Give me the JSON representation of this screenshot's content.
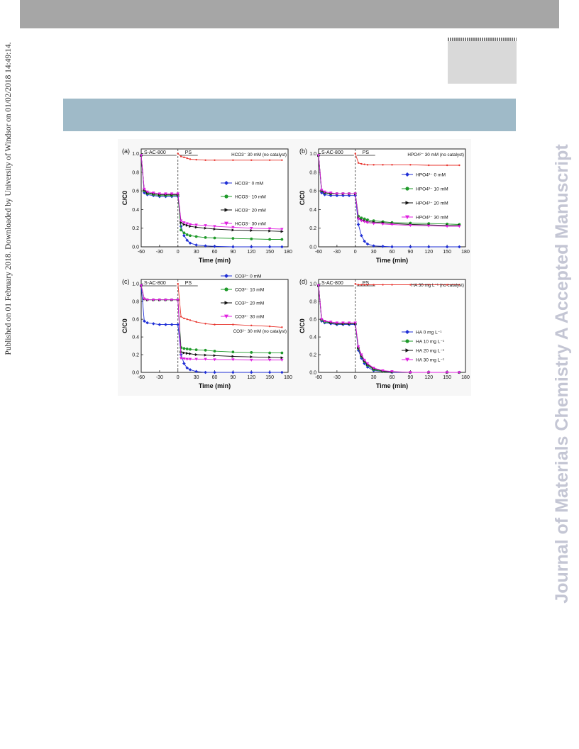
{
  "page": {
    "side_text": "Published on 01 February 2018. Downloaded by University of Windsor on 01/02/2018 14:49:14.",
    "watermark": "Journal of Materials Chemistry A Accepted Manuscript"
  },
  "colors": {
    "top_bar": "#a6a6a6",
    "title_band": "#9fbac8",
    "gray_box": "#d9d9d9",
    "watermark": "#c4c6d4",
    "nocat": "#e8352e",
    "blue": "#1f2fd6",
    "green": "#1f9a2a",
    "black": "#111111",
    "magenta": "#e020e0"
  },
  "chart_data": [
    {
      "type": "line",
      "panel": "(a)",
      "xlabel": "Time (min)",
      "ylabel": "C/C0",
      "xlim": [
        -60,
        180
      ],
      "ylim": [
        0,
        1.05
      ],
      "xticks": [
        -60,
        -30,
        0,
        30,
        60,
        90,
        120,
        150,
        180
      ],
      "yticks": [
        "0.0",
        "0.2",
        "0.4",
        "0.6",
        "0.8",
        "1.0"
      ],
      "phase_labels": [
        "S-AC-800",
        "PS"
      ],
      "legend_position": "right",
      "series": [
        {
          "name": "HCO3⁻ 0 mM",
          "color": "#1f2fd6",
          "marker": "diamond",
          "x": [
            -60,
            -55,
            -50,
            -40,
            -30,
            -20,
            -10,
            0,
            5,
            10,
            15,
            20,
            30,
            45,
            60,
            90,
            120,
            150,
            170
          ],
          "y": [
            0.98,
            0.58,
            0.56,
            0.55,
            0.54,
            0.54,
            0.54,
            0.54,
            0.22,
            0.12,
            0.07,
            0.04,
            0.02,
            0.01,
            0.005,
            0,
            0,
            0,
            0
          ]
        },
        {
          "name": "HCO3⁻ 10 mM",
          "color": "#1f9a2a",
          "marker": "circle",
          "x": [
            -60,
            -55,
            -50,
            -40,
            -30,
            -20,
            -10,
            0,
            5,
            10,
            15,
            20,
            30,
            45,
            60,
            90,
            120,
            150,
            170
          ],
          "y": [
            0.98,
            0.6,
            0.57,
            0.56,
            0.55,
            0.55,
            0.55,
            0.55,
            0.18,
            0.15,
            0.13,
            0.12,
            0.11,
            0.1,
            0.095,
            0.09,
            0.085,
            0.08,
            0.08
          ]
        },
        {
          "name": "HCO3⁻ 20 mM",
          "color": "#111111",
          "marker": "triangle-right",
          "x": [
            -60,
            -55,
            -50,
            -40,
            -30,
            -20,
            -10,
            0,
            5,
            10,
            15,
            20,
            30,
            45,
            60,
            90,
            120,
            150,
            170
          ],
          "y": [
            0.98,
            0.61,
            0.58,
            0.57,
            0.56,
            0.56,
            0.56,
            0.56,
            0.26,
            0.24,
            0.23,
            0.22,
            0.21,
            0.2,
            0.19,
            0.18,
            0.175,
            0.17,
            0.165
          ]
        },
        {
          "name": "HCO3⁻ 30 mM",
          "color": "#e020e0",
          "marker": "triangle-down",
          "x": [
            -60,
            -55,
            -50,
            -40,
            -30,
            -20,
            -10,
            0,
            5,
            10,
            15,
            20,
            30,
            45,
            60,
            90,
            120,
            150,
            170
          ],
          "y": [
            0.98,
            0.62,
            0.59,
            0.58,
            0.57,
            0.57,
            0.57,
            0.57,
            0.28,
            0.26,
            0.25,
            0.24,
            0.235,
            0.23,
            0.22,
            0.21,
            0.2,
            0.195,
            0.19
          ]
        },
        {
          "name": "HCO3⁻ 30 mM (no catalyst)",
          "color": "#e8352e",
          "marker": "dot",
          "x": [
            0,
            5,
            10,
            15,
            20,
            30,
            45,
            60,
            90,
            120,
            150,
            170
          ],
          "y": [
            1.0,
            0.97,
            0.96,
            0.95,
            0.94,
            0.935,
            0.93,
            0.93,
            0.93,
            0.93,
            0.93,
            0.93
          ]
        }
      ]
    },
    {
      "type": "line",
      "panel": "(b)",
      "xlabel": "Time (min)",
      "ylabel": "C/C0",
      "xlim": [
        -60,
        180
      ],
      "ylim": [
        0,
        1.05
      ],
      "xticks": [
        -60,
        -30,
        0,
        30,
        60,
        90,
        120,
        150,
        180
      ],
      "yticks": [
        "0.0",
        "0.2",
        "0.4",
        "0.6",
        "0.8",
        "1.0"
      ],
      "phase_labels": [
        "S-AC-800",
        "PS"
      ],
      "legend_position": "right",
      "series": [
        {
          "name": "HPO4²⁻ 0 mM",
          "color": "#1f2fd6",
          "marker": "diamond",
          "x": [
            -60,
            -55,
            -50,
            -40,
            -30,
            -20,
            -10,
            0,
            5,
            10,
            15,
            20,
            30,
            45,
            60,
            90,
            120,
            150,
            170
          ],
          "y": [
            0.98,
            0.58,
            0.56,
            0.55,
            0.55,
            0.55,
            0.55,
            0.55,
            0.24,
            0.12,
            0.06,
            0.03,
            0.01,
            0.005,
            0,
            0,
            0,
            0,
            0
          ]
        },
        {
          "name": "HPO4²⁻ 10 mM",
          "color": "#1f9a2a",
          "marker": "circle",
          "x": [
            -60,
            -55,
            -50,
            -40,
            -30,
            -20,
            -10,
            0,
            5,
            10,
            15,
            20,
            30,
            45,
            60,
            90,
            120,
            150,
            170
          ],
          "y": [
            0.98,
            0.6,
            0.58,
            0.57,
            0.57,
            0.57,
            0.57,
            0.57,
            0.33,
            0.31,
            0.3,
            0.29,
            0.28,
            0.27,
            0.26,
            0.255,
            0.25,
            0.245,
            0.24
          ]
        },
        {
          "name": "HPO4²⁻ 20 mM",
          "color": "#111111",
          "marker": "triangle-right",
          "x": [
            -60,
            -55,
            -50,
            -40,
            -30,
            -20,
            -10,
            0,
            5,
            10,
            15,
            20,
            30,
            45,
            60,
            90,
            120,
            150,
            170
          ],
          "y": [
            0.98,
            0.6,
            0.58,
            0.57,
            0.57,
            0.57,
            0.57,
            0.57,
            0.31,
            0.29,
            0.28,
            0.27,
            0.265,
            0.26,
            0.25,
            0.24,
            0.235,
            0.23,
            0.23
          ]
        },
        {
          "name": "HPO4²⁻ 30 mM",
          "color": "#e020e0",
          "marker": "triangle-down",
          "x": [
            -60,
            -55,
            -50,
            -40,
            -30,
            -20,
            -10,
            0,
            5,
            10,
            15,
            20,
            30,
            45,
            60,
            90,
            120,
            150,
            170
          ],
          "y": [
            0.98,
            0.61,
            0.59,
            0.58,
            0.57,
            0.57,
            0.57,
            0.57,
            0.3,
            0.28,
            0.27,
            0.26,
            0.25,
            0.245,
            0.24,
            0.23,
            0.225,
            0.22,
            0.22
          ]
        },
        {
          "name": "HPO4²⁻ 30 mM (no catalyst)",
          "color": "#e8352e",
          "marker": "dot",
          "x": [
            0,
            5,
            10,
            15,
            20,
            30,
            45,
            60,
            90,
            120,
            150,
            170
          ],
          "y": [
            1.0,
            0.9,
            0.89,
            0.885,
            0.88,
            0.88,
            0.88,
            0.88,
            0.88,
            0.875,
            0.875,
            0.875
          ]
        }
      ]
    },
    {
      "type": "line",
      "panel": "(c)",
      "xlabel": "Time (min)",
      "ylabel": "C/C0",
      "xlim": [
        -60,
        180
      ],
      "ylim": [
        0,
        1.05
      ],
      "xticks": [
        -60,
        -30,
        0,
        30,
        60,
        90,
        120,
        150,
        180
      ],
      "yticks": [
        "0.0",
        "0.2",
        "0.4",
        "0.6",
        "0.8",
        "1.0"
      ],
      "phase_labels": [
        "S-AC-800",
        "PS"
      ],
      "legend_position": "right",
      "series": [
        {
          "name": "CO3²⁻ 0 mM",
          "color": "#1f2fd6",
          "marker": "diamond",
          "x": [
            -60,
            -55,
            -50,
            -40,
            -30,
            -20,
            -10,
            0,
            5,
            10,
            15,
            20,
            30,
            45,
            60,
            90,
            120,
            150,
            170
          ],
          "y": [
            0.98,
            0.58,
            0.56,
            0.55,
            0.54,
            0.54,
            0.54,
            0.54,
            0.2,
            0.1,
            0.05,
            0.03,
            0.01,
            0,
            0,
            0,
            0,
            0,
            0
          ]
        },
        {
          "name": "CO3²⁻ 10 mM",
          "color": "#1f9a2a",
          "marker": "circle",
          "x": [
            -60,
            -55,
            -50,
            -40,
            -30,
            -20,
            -10,
            0,
            5,
            10,
            15,
            20,
            30,
            45,
            60,
            90,
            120,
            150,
            170
          ],
          "y": [
            0.98,
            0.83,
            0.82,
            0.82,
            0.82,
            0.82,
            0.82,
            0.82,
            0.28,
            0.27,
            0.265,
            0.26,
            0.255,
            0.25,
            0.24,
            0.23,
            0.225,
            0.22,
            0.22
          ]
        },
        {
          "name": "CO3²⁻ 20 mM",
          "color": "#111111",
          "marker": "triangle-right",
          "x": [
            -60,
            -55,
            -50,
            -40,
            -30,
            -20,
            -10,
            0,
            5,
            10,
            15,
            20,
            30,
            45,
            60,
            90,
            120,
            150,
            170
          ],
          "y": [
            0.98,
            0.83,
            0.82,
            0.82,
            0.82,
            0.82,
            0.82,
            0.82,
            0.23,
            0.22,
            0.215,
            0.21,
            0.2,
            0.195,
            0.19,
            0.18,
            0.175,
            0.17,
            0.165
          ]
        },
        {
          "name": "CO3²⁻ 30 mM",
          "color": "#e020e0",
          "marker": "triangle-down",
          "x": [
            -60,
            -55,
            -50,
            -40,
            -30,
            -20,
            -10,
            0,
            5,
            10,
            15,
            20,
            30,
            45,
            60,
            90,
            120,
            150,
            170
          ],
          "y": [
            0.98,
            0.83,
            0.82,
            0.82,
            0.82,
            0.82,
            0.82,
            0.82,
            0.16,
            0.155,
            0.15,
            0.15,
            0.15,
            0.15,
            0.145,
            0.145,
            0.14,
            0.14,
            0.14
          ]
        },
        {
          "name": "CO3²⁻ 30 mM (no catalyst)",
          "color": "#e8352e",
          "marker": "dot",
          "x": [
            0,
            5,
            10,
            15,
            20,
            30,
            45,
            60,
            90,
            120,
            150,
            170
          ],
          "y": [
            1.0,
            0.63,
            0.61,
            0.6,
            0.59,
            0.57,
            0.55,
            0.54,
            0.54,
            0.53,
            0.52,
            0.51
          ]
        }
      ]
    },
    {
      "type": "line",
      "panel": "(d)",
      "xlabel": "Time (min)",
      "ylabel": "C/C0",
      "xlim": [
        -60,
        180
      ],
      "ylim": [
        0,
        1.05
      ],
      "xticks": [
        -60,
        -30,
        0,
        30,
        60,
        90,
        120,
        150,
        180
      ],
      "yticks": [
        "0.0",
        "0.2",
        "0.4",
        "0.6",
        "0.8",
        "1.0"
      ],
      "phase_labels": [
        "S-AC-800",
        "PS"
      ],
      "legend_position": "bottom-right",
      "series": [
        {
          "name": "HA 0 mg L⁻¹",
          "color": "#1f2fd6",
          "marker": "diamond",
          "x": [
            -60,
            -55,
            -50,
            -40,
            -30,
            -20,
            -10,
            0,
            5,
            10,
            15,
            20,
            30,
            45,
            60,
            90,
            120,
            150,
            170
          ],
          "y": [
            0.98,
            0.58,
            0.56,
            0.55,
            0.54,
            0.54,
            0.54,
            0.54,
            0.25,
            0.16,
            0.1,
            0.06,
            0.02,
            0.01,
            0,
            0,
            0,
            0,
            0
          ]
        },
        {
          "name": "HA 10 mg L⁻¹",
          "color": "#1f9a2a",
          "marker": "circle",
          "x": [
            -60,
            -55,
            -50,
            -40,
            -30,
            -20,
            -10,
            0,
            5,
            10,
            15,
            20,
            30,
            45,
            60,
            90,
            120,
            150,
            170
          ],
          "y": [
            0.98,
            0.59,
            0.57,
            0.56,
            0.55,
            0.55,
            0.55,
            0.55,
            0.27,
            0.18,
            0.12,
            0.08,
            0.03,
            0.01,
            0.005,
            0,
            0,
            0,
            0
          ]
        },
        {
          "name": "HA 20 mg L⁻¹",
          "color": "#111111",
          "marker": "triangle-right",
          "x": [
            -60,
            -55,
            -50,
            -40,
            -30,
            -20,
            -10,
            0,
            5,
            10,
            15,
            20,
            30,
            45,
            60,
            90,
            120,
            150,
            170
          ],
          "y": [
            0.98,
            0.6,
            0.58,
            0.56,
            0.55,
            0.55,
            0.55,
            0.55,
            0.28,
            0.19,
            0.13,
            0.09,
            0.04,
            0.015,
            0.005,
            0,
            0,
            0,
            0
          ]
        },
        {
          "name": "HA 30 mg L⁻¹",
          "color": "#e020e0",
          "marker": "triangle-down",
          "x": [
            -60,
            -55,
            -50,
            -40,
            -30,
            -20,
            -10,
            0,
            5,
            10,
            15,
            20,
            30,
            45,
            60,
            90,
            120,
            150,
            170
          ],
          "y": [
            0.98,
            0.6,
            0.58,
            0.57,
            0.56,
            0.56,
            0.56,
            0.56,
            0.29,
            0.2,
            0.14,
            0.1,
            0.05,
            0.02,
            0.01,
            0,
            0,
            0,
            0
          ]
        },
        {
          "name": "HA 30 mg L⁻¹ (no catalyst)",
          "color": "#e8352e",
          "marker": "dot",
          "x": [
            0,
            5,
            10,
            15,
            20,
            30,
            45,
            60,
            90,
            120,
            150,
            170
          ],
          "y": [
            1.0,
            0.99,
            0.99,
            0.99,
            0.99,
            0.99,
            0.99,
            0.99,
            0.99,
            0.99,
            0.99,
            0.99
          ]
        }
      ]
    }
  ]
}
